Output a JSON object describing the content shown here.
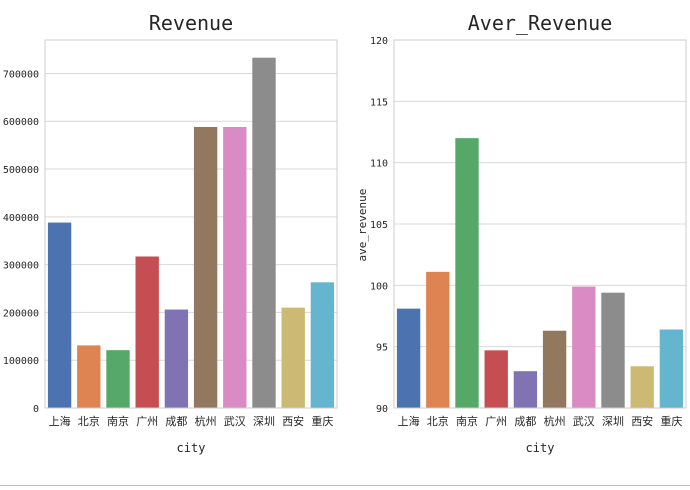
{
  "colors": [
    "#4c72b0",
    "#dd8452",
    "#55a868",
    "#c44e52",
    "#8172b3",
    "#937860",
    "#da8bc3",
    "#8c8c8c",
    "#ccb974",
    "#64b5cd"
  ],
  "chart_data": [
    {
      "type": "bar",
      "title": "Revenue",
      "xlabel": "city",
      "ylabel": "",
      "categories": [
        "上海",
        "北京",
        "南京",
        "广州",
        "成都",
        "杭州",
        "武汉",
        "深圳",
        "西安",
        "重庆"
      ],
      "values": [
        388000,
        131000,
        121000,
        317000,
        206000,
        588000,
        588000,
        733000,
        210000,
        263000
      ],
      "ylim": [
        0,
        770000
      ],
      "yticks": [
        0,
        100000,
        200000,
        300000,
        400000,
        500000,
        600000,
        700000
      ],
      "grid": "horizontal"
    },
    {
      "type": "bar",
      "title": "Aver_Revenue",
      "xlabel": "city",
      "ylabel": "ave_revenue",
      "categories": [
        "上海",
        "北京",
        "南京",
        "广州",
        "成都",
        "杭州",
        "武汉",
        "深圳",
        "西安",
        "重庆"
      ],
      "values": [
        98.1,
        101.1,
        112.0,
        94.7,
        93.0,
        96.3,
        99.9,
        99.4,
        93.4,
        96.4
      ],
      "ylim": [
        90,
        120
      ],
      "yticks": [
        90,
        95,
        100,
        105,
        110,
        115,
        120
      ],
      "grid": "horizontal"
    }
  ]
}
